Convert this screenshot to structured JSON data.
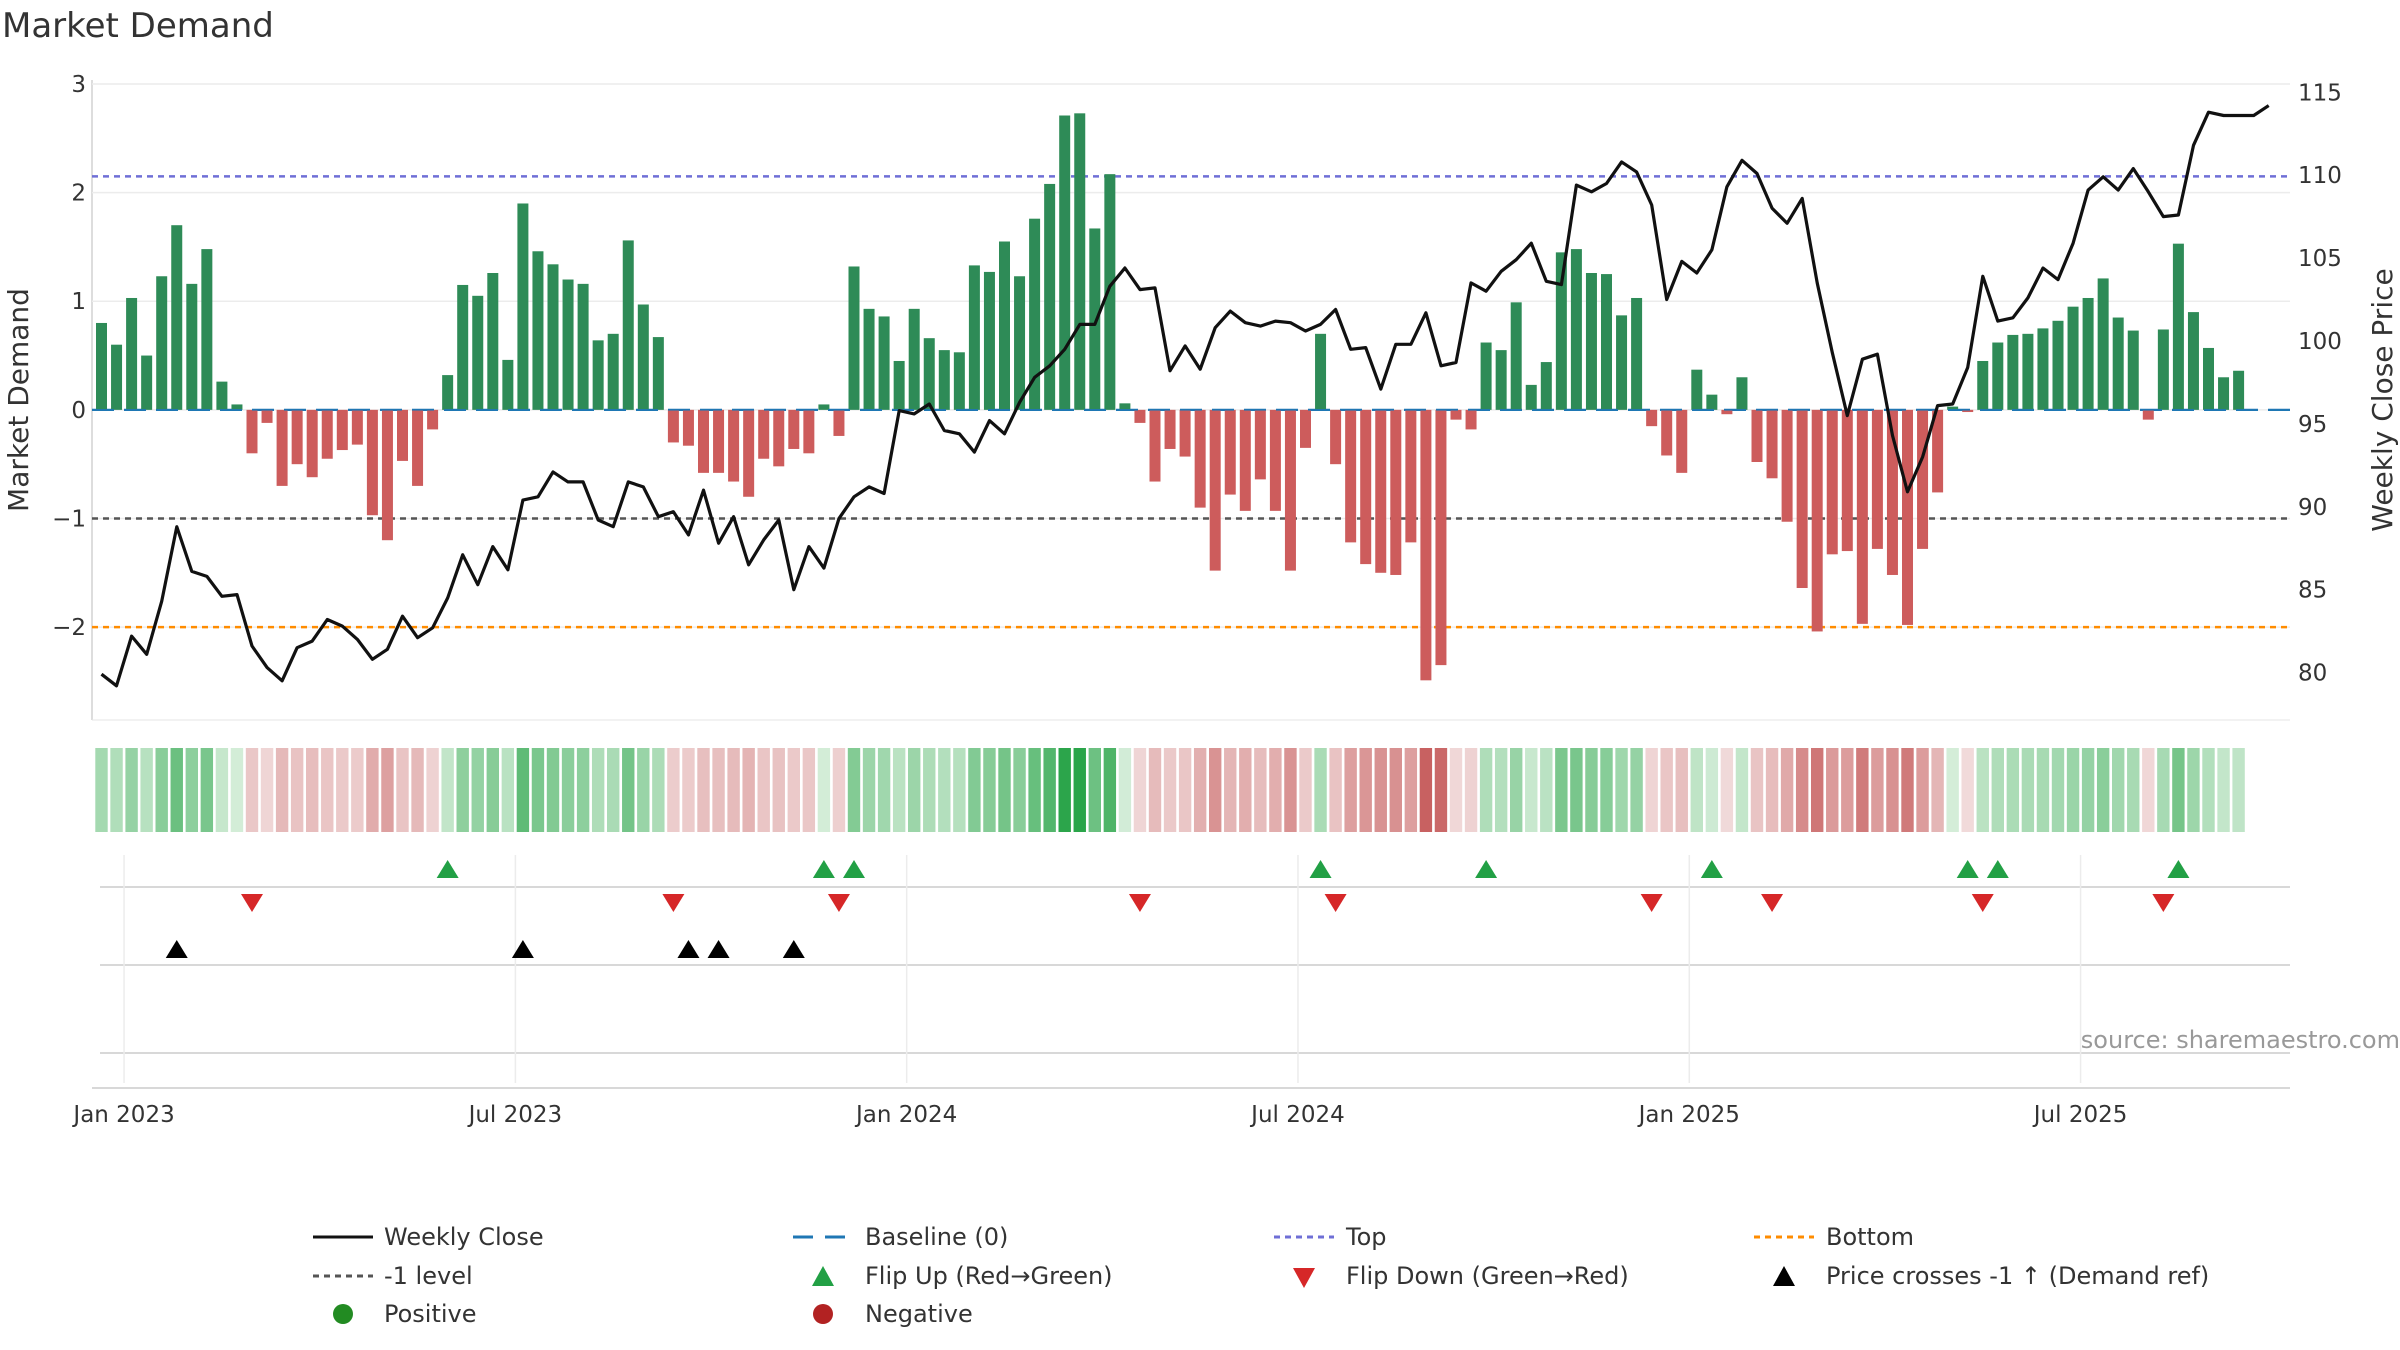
{
  "title": "Market Demand",
  "source": "source: sharemaestro.com",
  "colors": {
    "positive": "#2e8b57",
    "negative": "#cd5c5c",
    "line": "#111111",
    "top": "#6f6fd6",
    "bottom": "#ff8c00",
    "minus1": "#555555",
    "baseline": "#1f77b4",
    "flip_up": "#22a045",
    "flip_down": "#d62728",
    "cross": "#000000",
    "dot_pos": "#228b22",
    "dot_neg": "#b22222"
  },
  "chart_data": {
    "type": "bar+line",
    "title": "Market Demand",
    "ylabel_left": "Market Demand",
    "ylabel_right": "Weekly Close Price",
    "ylim_left": [
      -2.8,
      3.0
    ],
    "ylim_right": [
      77.5,
      115.5
    ],
    "yticks_left": [
      3,
      2,
      1,
      0,
      -1,
      -2
    ],
    "yticks_left_labels": [
      "3",
      "2",
      "1",
      "0",
      "−1",
      "−2"
    ],
    "yticks_right": [
      115,
      110,
      105,
      100,
      95,
      90,
      85,
      80
    ],
    "yticks_right_labels": [
      "115",
      "110",
      "105",
      "100",
      "95",
      "90",
      "85",
      "80"
    ],
    "x_tick_labels": [
      "Jan 2023",
      "Jul 2023",
      "Jan 2024",
      "Jul 2024",
      "Jan 2025",
      "Jul 2025"
    ],
    "x_tick_weeks": [
      1.5,
      27.5,
      53.5,
      79.5,
      105.5,
      131.5
    ],
    "reference_lines": {
      "top": 2.15,
      "bottom": -2.0,
      "minus1": -1.0,
      "baseline": 0.0
    },
    "demand": [
      0.8,
      0.6,
      1.03,
      0.5,
      1.23,
      1.7,
      1.16,
      1.48,
      0.26,
      0.05,
      -0.4,
      -0.12,
      -0.7,
      -0.5,
      -0.62,
      -0.45,
      -0.37,
      -0.32,
      -0.97,
      -1.2,
      -0.47,
      -0.7,
      -0.18,
      0.32,
      1.15,
      1.05,
      1.26,
      0.46,
      1.9,
      1.46,
      1.34,
      1.2,
      1.16,
      0.64,
      0.7,
      1.56,
      0.97,
      0.67,
      -0.3,
      -0.33,
      -0.58,
      -0.58,
      -0.66,
      -0.8,
      -0.45,
      -0.52,
      -0.36,
      -0.4,
      0.05,
      -0.24,
      1.32,
      0.93,
      0.86,
      0.45,
      0.93,
      0.66,
      0.55,
      0.53,
      1.33,
      1.27,
      1.55,
      1.23,
      1.76,
      2.08,
      2.71,
      2.73,
      1.67,
      2.17,
      0.06,
      -0.12,
      -0.66,
      -0.36,
      -0.43,
      -0.9,
      -1.48,
      -0.78,
      -0.93,
      -0.64,
      -0.93,
      -1.48,
      -0.35,
      0.7,
      -0.5,
      -1.22,
      -1.42,
      -1.5,
      -1.52,
      -1.22,
      -2.49,
      -2.35,
      -0.09,
      -0.18,
      0.62,
      0.55,
      0.99,
      0.23,
      0.44,
      1.45,
      1.48,
      1.26,
      1.25,
      0.87,
      1.03,
      -0.15,
      -0.42,
      -0.58,
      0.37,
      0.14,
      -0.04,
      0.3,
      -0.48,
      -0.63,
      -1.03,
      -1.64,
      -2.04,
      -1.33,
      -1.3,
      -1.97,
      -1.28,
      -1.52,
      -1.98,
      -1.28,
      -0.76,
      0.03,
      -0.02,
      0.45,
      0.62,
      0.69,
      0.7,
      0.75,
      0.82,
      0.95,
      1.03,
      1.21,
      0.85,
      0.73,
      -0.09,
      0.74,
      1.53,
      0.9,
      0.57,
      0.3,
      0.36
    ],
    "close": [
      79.9,
      79.2,
      82.2,
      81.1,
      84.3,
      88.8,
      86.1,
      85.8,
      84.6,
      84.7,
      81.6,
      80.3,
      79.5,
      81.5,
      81.9,
      83.2,
      82.8,
      82.0,
      80.8,
      81.4,
      83.4,
      82.1,
      82.7,
      84.5,
      87.1,
      85.3,
      87.6,
      86.2,
      90.4,
      90.6,
      92.1,
      91.5,
      91.5,
      89.2,
      88.8,
      91.5,
      91.2,
      89.4,
      89.7,
      88.3,
      91.0,
      87.8,
      89.4,
      86.5,
      88.0,
      89.2,
      85.0,
      87.6,
      86.3,
      89.3,
      90.6,
      91.2,
      90.8,
      95.8,
      95.6,
      96.2,
      94.6,
      94.4,
      93.3,
      95.2,
      94.4,
      96.3,
      97.8,
      98.5,
      99.5,
      101.0,
      101.0,
      103.3,
      104.4,
      103.1,
      103.2,
      98.2,
      99.7,
      98.3,
      100.8,
      101.8,
      101.1,
      100.9,
      101.2,
      101.1,
      100.6,
      101.0,
      101.9,
      99.5,
      99.6,
      97.1,
      99.8,
      99.8,
      101.7,
      98.5,
      98.7,
      103.5,
      103.0,
      104.2,
      104.9,
      105.9,
      103.6,
      103.4,
      109.4,
      109.0,
      109.5,
      110.8,
      110.2,
      108.2,
      102.5,
      104.8,
      104.1,
      105.5,
      109.3,
      110.9,
      110.1,
      108.0,
      107.1,
      108.6,
      103.5,
      99.3,
      95.5,
      98.9,
      99.2,
      94.3,
      90.9,
      93.0,
      96.1,
      96.2,
      98.4,
      103.9,
      101.2,
      101.4,
      102.6,
      104.4,
      103.7,
      105.9,
      109.1,
      109.9,
      109.1,
      110.4,
      109.0,
      107.5,
      107.6,
      111.8,
      113.8,
      113.6,
      113.6,
      113.6,
      114.2
    ],
    "flip_up_weeks": [
      23,
      48,
      50,
      81,
      92,
      107,
      124,
      126,
      138
    ],
    "flip_down_weeks": [
      10,
      38,
      49,
      69,
      82,
      103,
      111,
      125,
      137
    ],
    "cross_weeks": [
      5,
      28,
      39,
      41,
      46
    ]
  },
  "legend": {
    "weekly_close": "Weekly Close",
    "baseline": "Baseline (0)",
    "top": "Top",
    "bottom": "Bottom",
    "minus1": "-1 level",
    "flip_up": "Flip Up (Red→Green)",
    "flip_down": "Flip Down (Green→Red)",
    "price_cross": "Price crosses -1 ↑ (Demand ref)",
    "positive": "Positive",
    "negative": "Negative"
  }
}
